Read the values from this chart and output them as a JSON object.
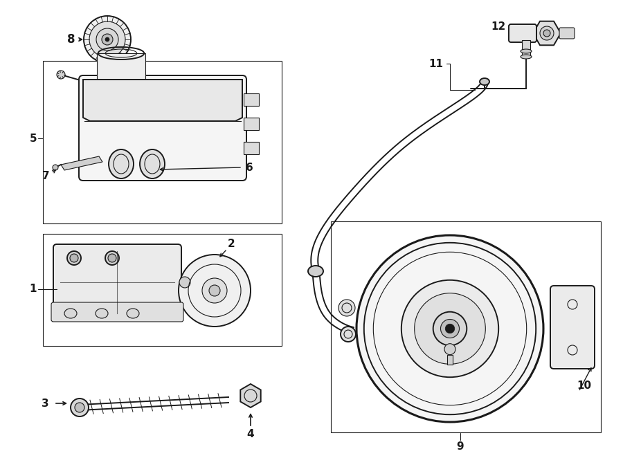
{
  "bg_color": "#ffffff",
  "line_color": "#1a1a1a",
  "lw_thin": 0.8,
  "lw_med": 1.4,
  "lw_thick": 2.2,
  "fig_w": 9.0,
  "fig_h": 6.62
}
